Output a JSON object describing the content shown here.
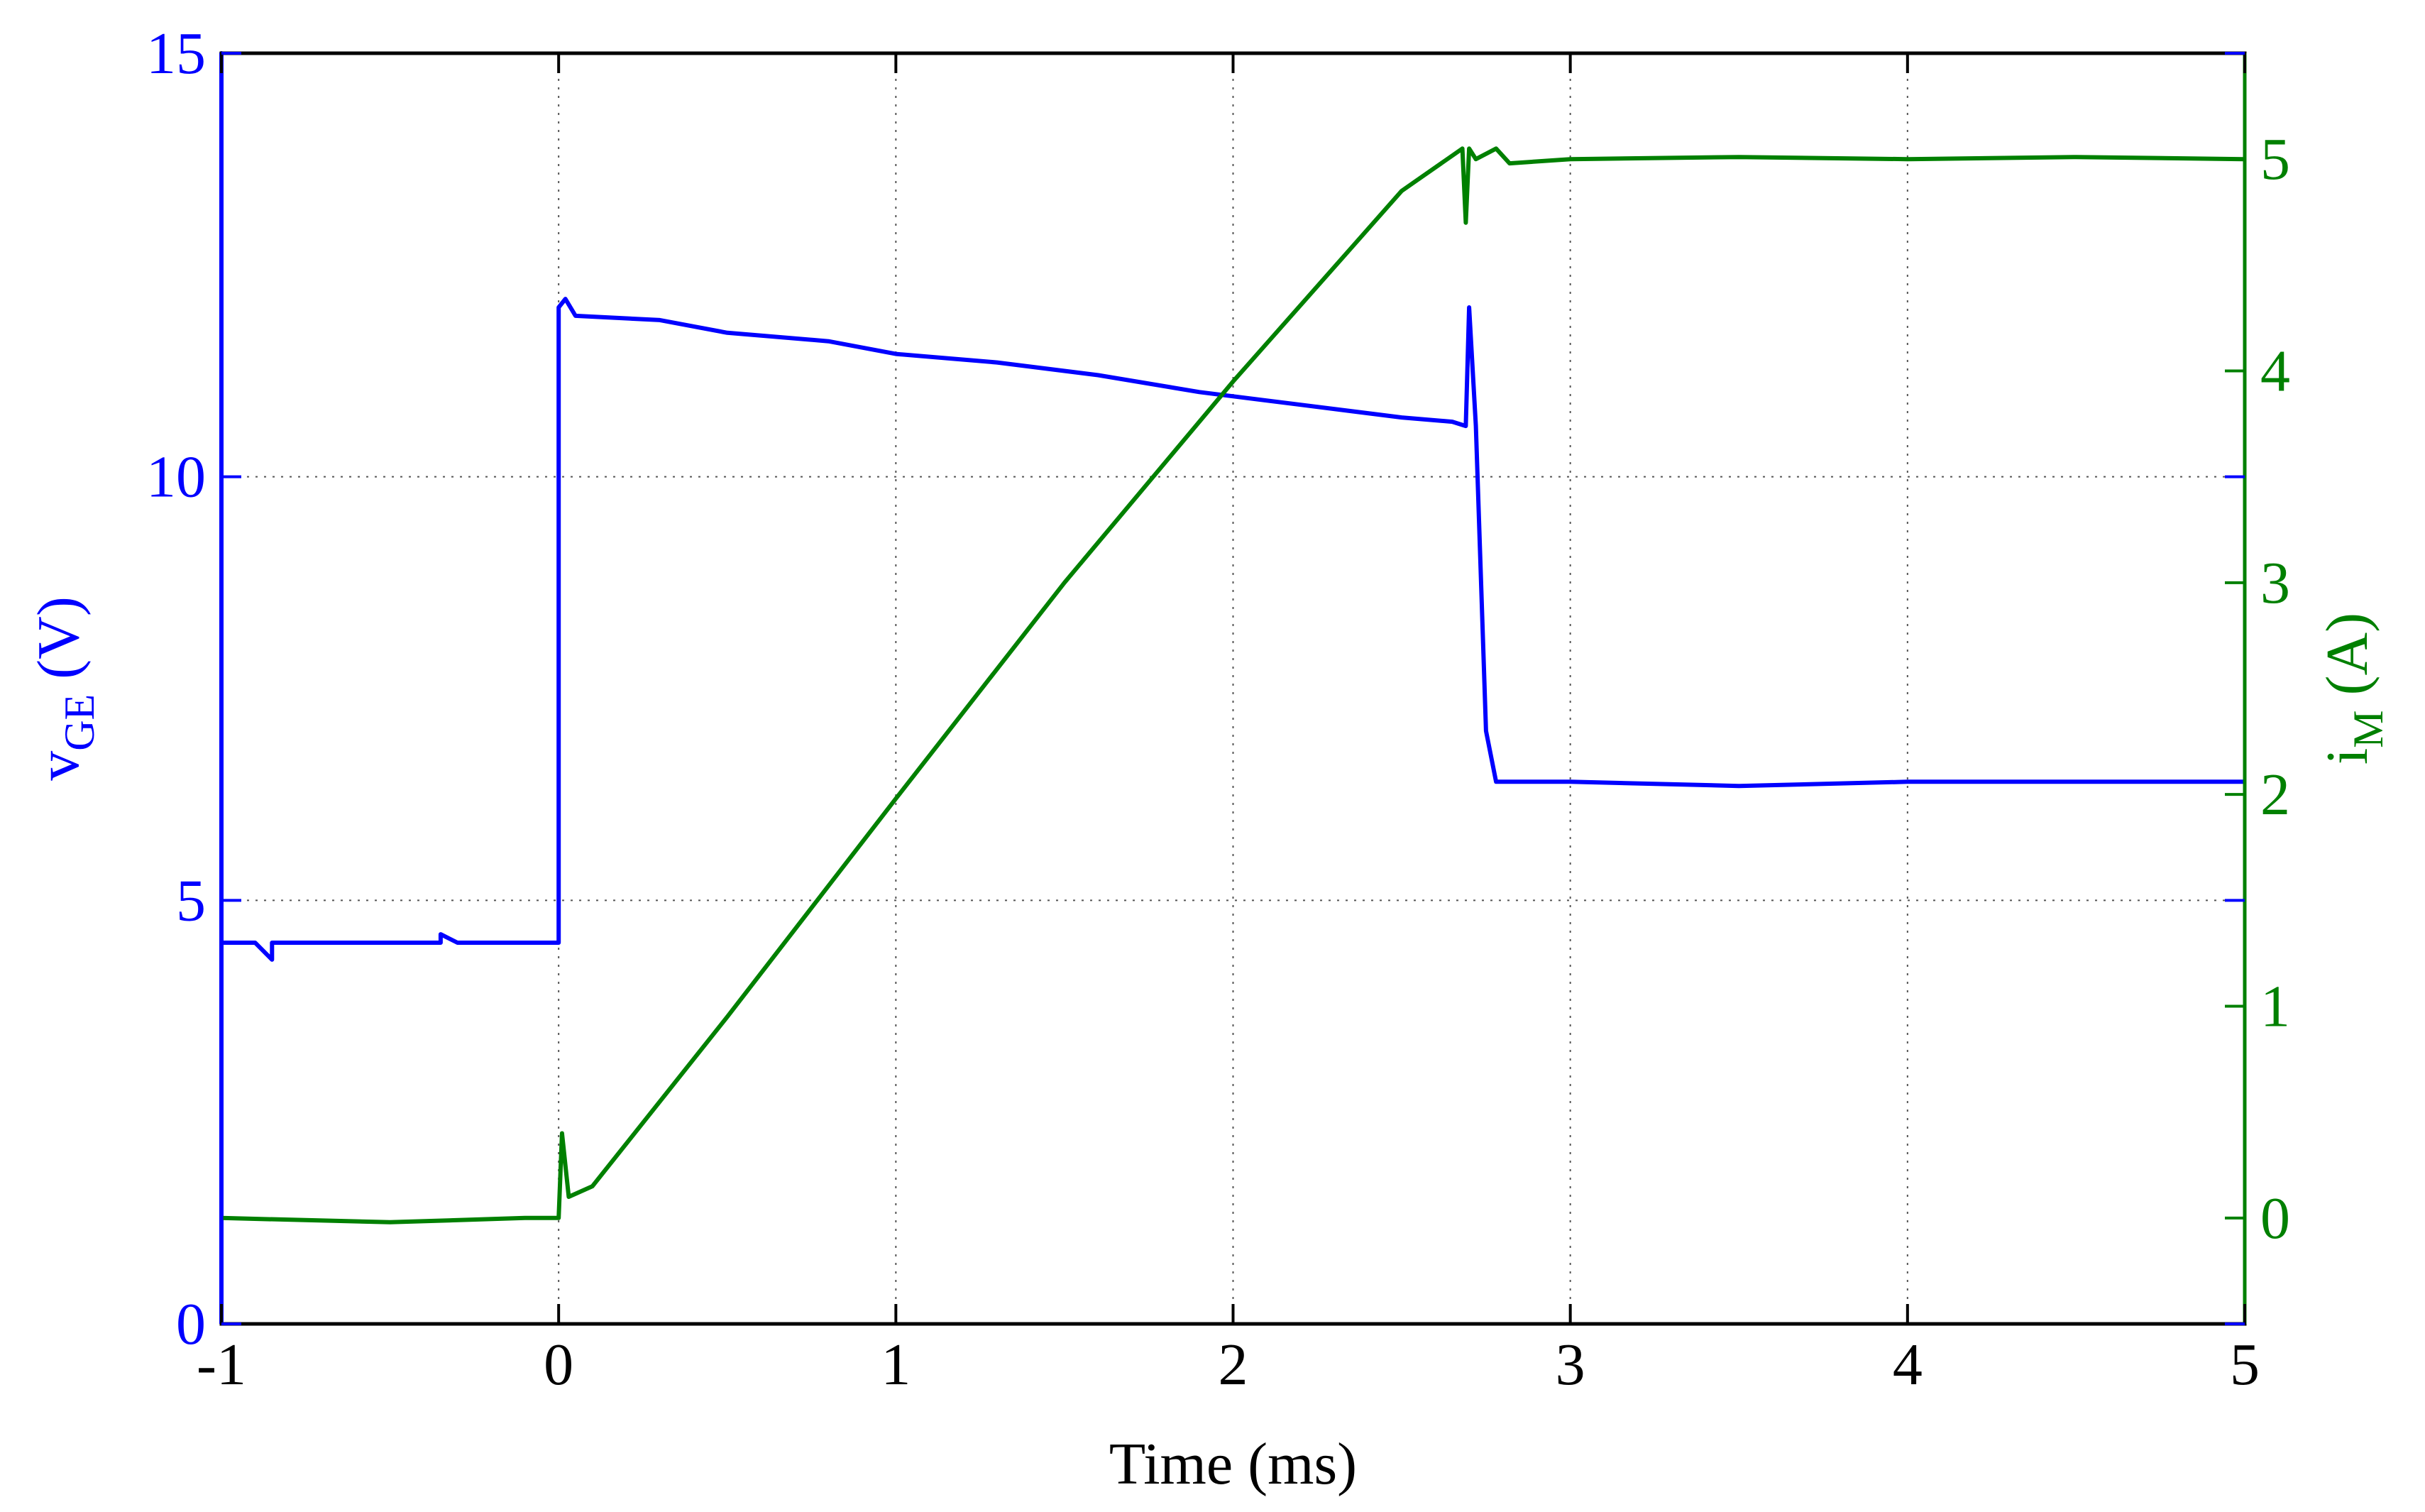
{
  "chart_data": {
    "type": "line",
    "xlabel": "Time (ms)",
    "ylabel_left": {
      "main": "v",
      "sub": "GE",
      "unit": " (V)"
    },
    "ylabel_right": {
      "main": "i",
      "sub": "M",
      "unit": " (A)"
    },
    "xlim": [
      -1,
      5
    ],
    "ylim_left": [
      0,
      15
    ],
    "ylim_right": [
      -0.5,
      5.5
    ],
    "x_ticks": [
      "-1",
      "0",
      "1",
      "2",
      "3",
      "4",
      "5"
    ],
    "y_ticks_left": [
      "0",
      "5",
      "10",
      "15"
    ],
    "y_ticks_right": [
      "0",
      "1",
      "2",
      "3",
      "4",
      "5"
    ],
    "grid": true,
    "colors": {
      "vge": "#0000ff",
      "im": "#008000",
      "axes": "#000000",
      "grid": "#555555"
    },
    "series": [
      {
        "axis": "left",
        "color": "#0000ff",
        "x": [
          -1.0,
          -1.0,
          -1.0,
          -0.9,
          -0.85,
          -0.85,
          -0.8,
          -0.35,
          -0.35,
          -0.3,
          0.0,
          0.0,
          0.0,
          0.02,
          0.05,
          0.3,
          0.5,
          0.8,
          1.0,
          1.3,
          1.6,
          1.9,
          2.2,
          2.5,
          2.65,
          2.69,
          2.7,
          2.72,
          2.75,
          2.78,
          3.0,
          3.5,
          4.0,
          4.5,
          5.0
        ],
        "y": [
          0.0,
          15.0,
          4.5,
          4.5,
          4.3,
          4.5,
          4.5,
          4.5,
          4.6,
          4.5,
          4.5,
          8.0,
          12.0,
          12.1,
          11.9,
          11.85,
          11.7,
          11.6,
          11.45,
          11.35,
          11.2,
          11.0,
          10.85,
          10.7,
          10.65,
          10.6,
          12.0,
          10.6,
          7.0,
          6.4,
          6.4,
          6.35,
          6.4,
          6.4,
          6.4
        ]
      },
      {
        "axis": "right",
        "color": "#008000",
        "x": [
          -1.0,
          -0.5,
          -0.1,
          0.0,
          0.01,
          0.03,
          0.1,
          0.5,
          1.0,
          1.5,
          2.0,
          2.5,
          2.68,
          2.69,
          2.7,
          2.72,
          2.78,
          2.82,
          3.0,
          3.5,
          4.0,
          4.5,
          5.0
        ],
        "y": [
          0.0,
          -0.02,
          0.0,
          0.0,
          0.4,
          0.1,
          0.15,
          0.95,
          1.98,
          3.0,
          3.95,
          4.85,
          5.05,
          4.7,
          5.05,
          5.0,
          5.05,
          4.98,
          5.0,
          5.01,
          5.0,
          5.01,
          5.0
        ]
      }
    ]
  }
}
